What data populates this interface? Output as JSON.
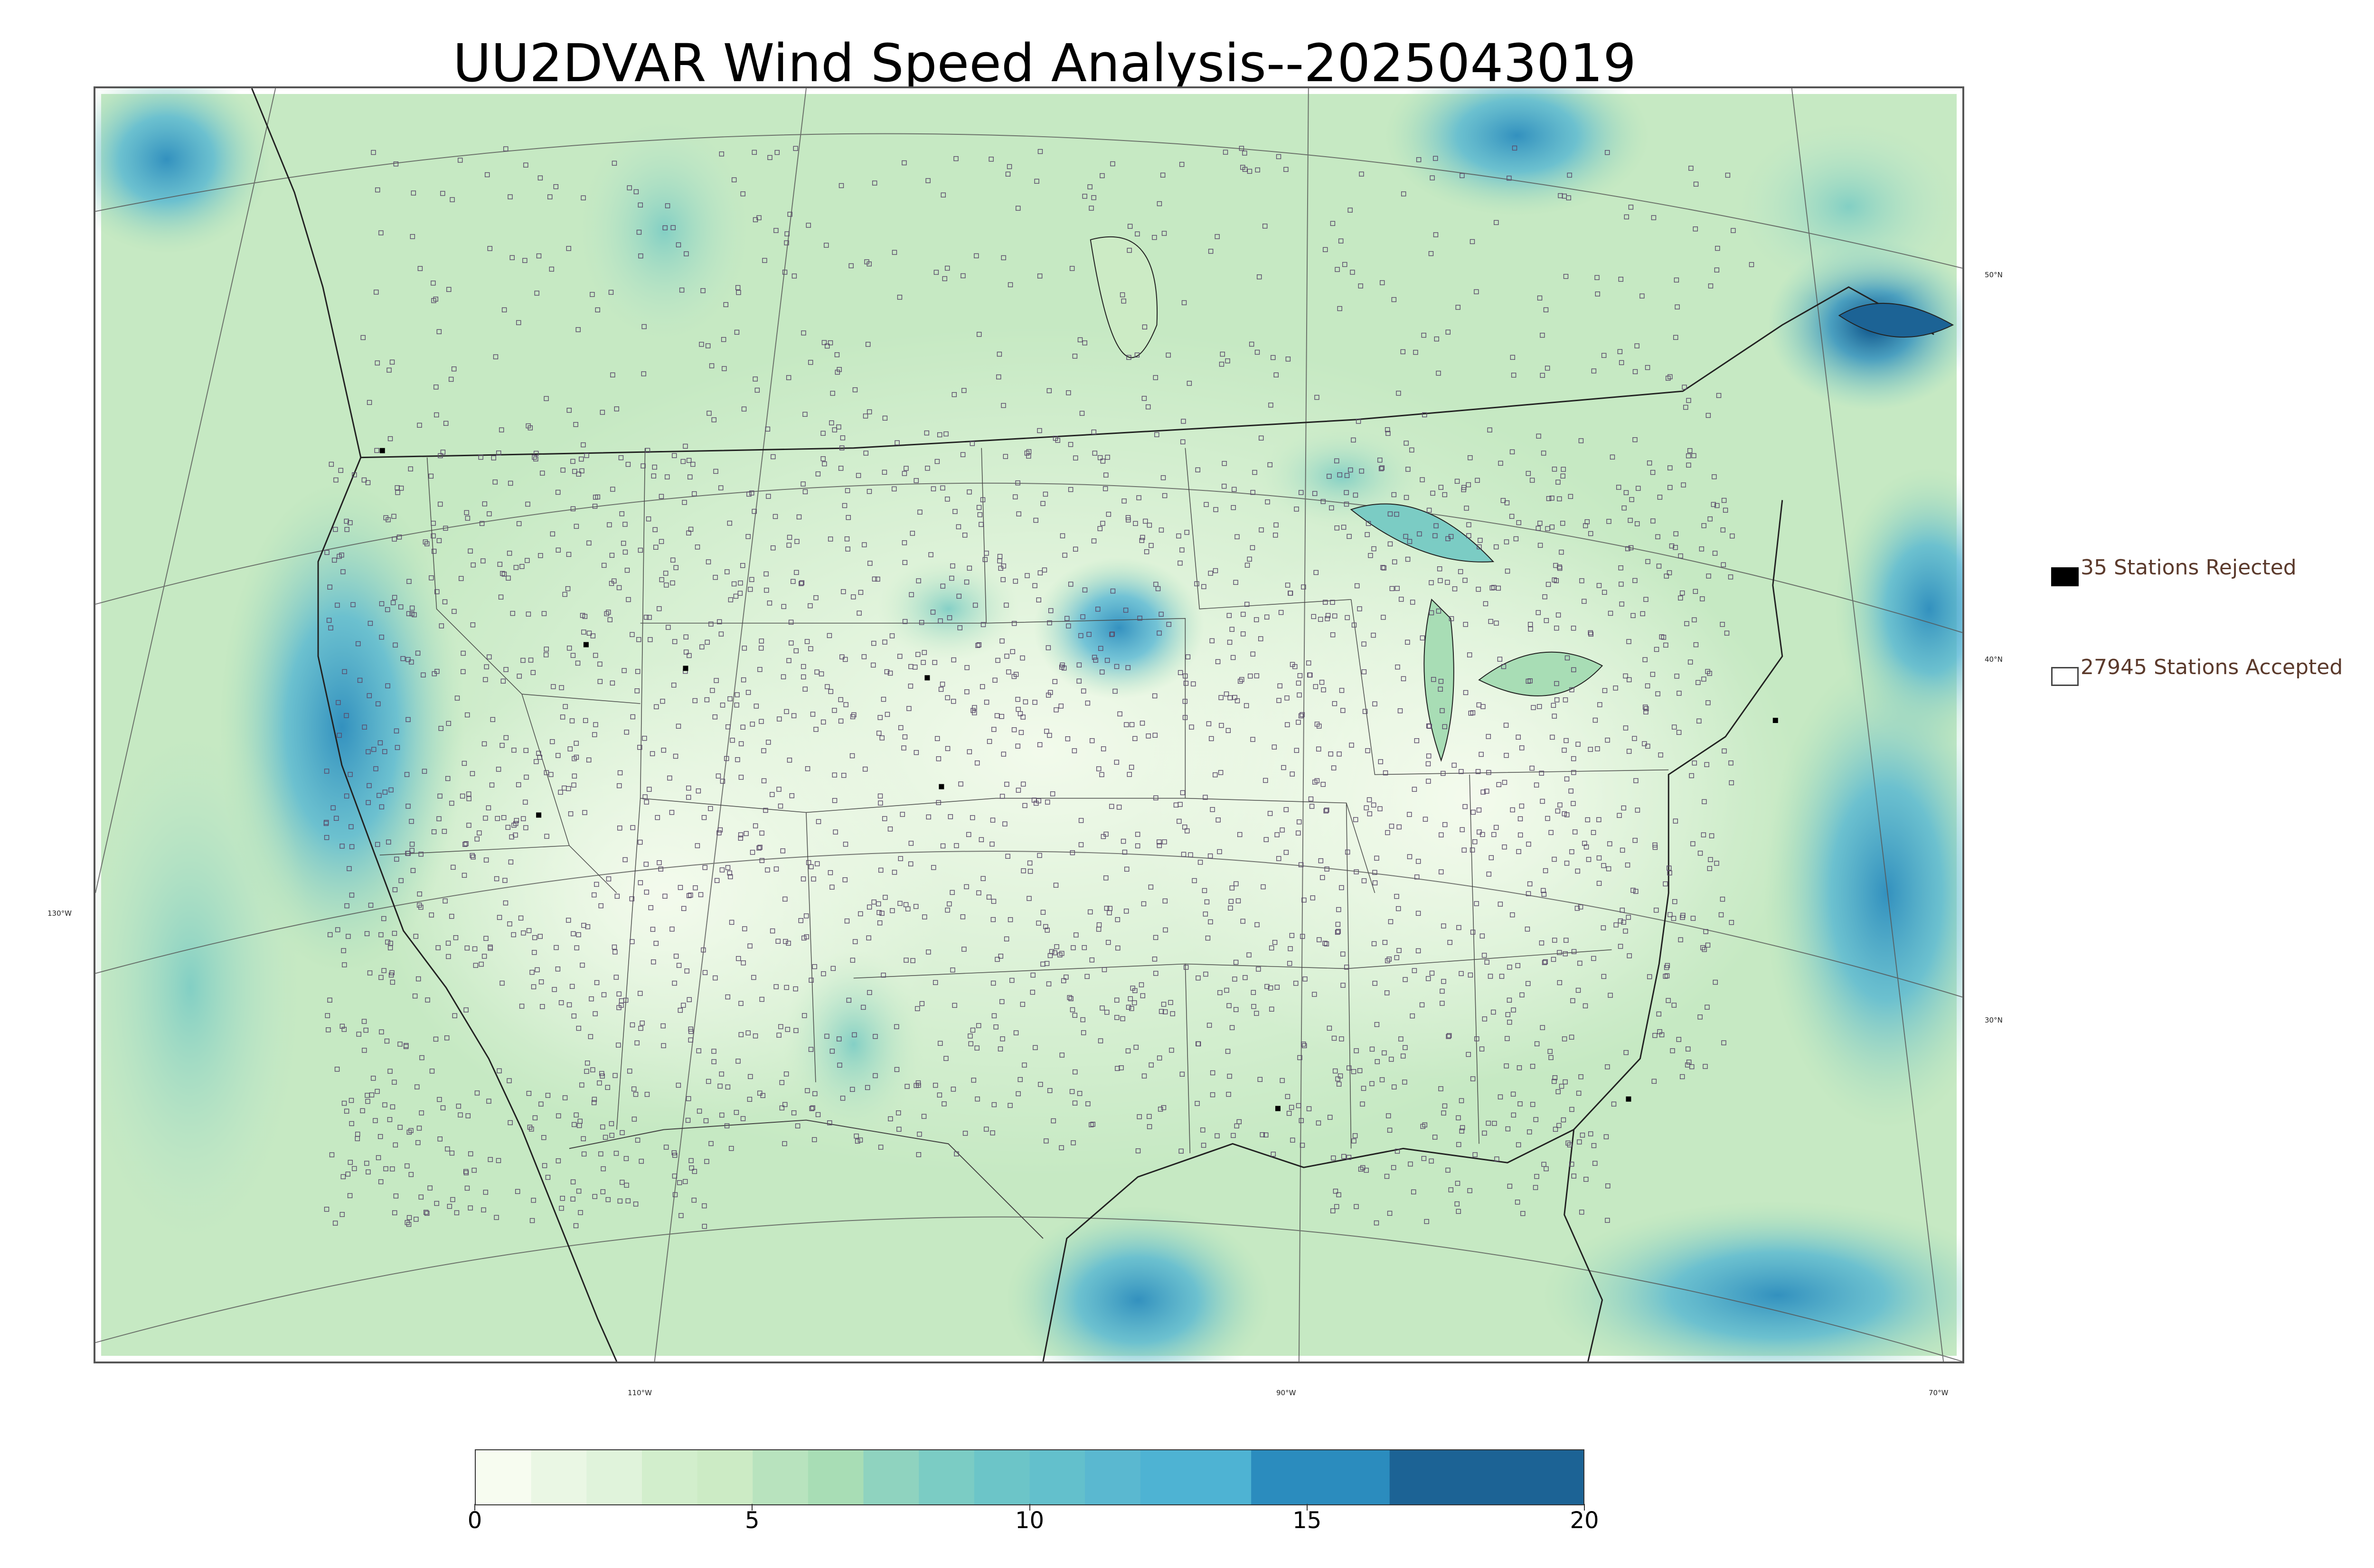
{
  "title": "UU2DVAR Wind Speed Analysis--2025043019",
  "map": {
    "latitude_labels": [
      "50°N",
      "40°N",
      "30°N"
    ],
    "longitude_labels": [
      "130°W",
      "110°W",
      "90°W",
      "70°W"
    ]
  },
  "legend": {
    "rejected": {
      "count": 35,
      "text": "35 Stations Rejected",
      "swatch_color": "#000000"
    },
    "accepted": {
      "count": 27945,
      "text": "27945 Stations Accepted",
      "swatch_color": "#ffffff"
    }
  },
  "colorbar": {
    "ticks": [
      "0",
      "5",
      "10",
      "15",
      "20"
    ],
    "range": [
      0,
      20
    ],
    "levels": [
      {
        "from": 0,
        "to": 1,
        "color": "#f7fcf0"
      },
      {
        "from": 1,
        "to": 2,
        "color": "#eaf7e4"
      },
      {
        "from": 2,
        "to": 3,
        "color": "#e0f3db"
      },
      {
        "from": 3,
        "to": 4,
        "color": "#d2eecc"
      },
      {
        "from": 4,
        "to": 5,
        "color": "#ccebc5"
      },
      {
        "from": 5,
        "to": 6,
        "color": "#b8e3be"
      },
      {
        "from": 6,
        "to": 7,
        "color": "#a8ddb5"
      },
      {
        "from": 7,
        "to": 8,
        "color": "#8fd3bf"
      },
      {
        "from": 8,
        "to": 9,
        "color": "#7bccc4"
      },
      {
        "from": 9,
        "to": 10,
        "color": "#6cc5c8"
      },
      {
        "from": 10,
        "to": 11,
        "color": "#63c0cc"
      },
      {
        "from": 11,
        "to": 12,
        "color": "#5ab8d0"
      },
      {
        "from": 12,
        "to": 14,
        "color": "#4eb3d3"
      },
      {
        "from": 14,
        "to": 16.5,
        "color": "#2b8cbe"
      },
      {
        "from": 16.5,
        "to": 20,
        "color": "#1c6395"
      }
    ]
  },
  "chart_data": {
    "type": "heatmap",
    "title": "UU2DVAR Wind Speed Analysis--2025043019",
    "colorbar_range": [
      0,
      20
    ],
    "colorbar_ticks": [
      0,
      5,
      10,
      15,
      20
    ],
    "legend_entries": [
      {
        "label": "35 Stations Rejected",
        "marker": "filled black square"
      },
      {
        "label": "27945 Stations Accepted",
        "marker": "open square"
      }
    ],
    "grid": true
  }
}
